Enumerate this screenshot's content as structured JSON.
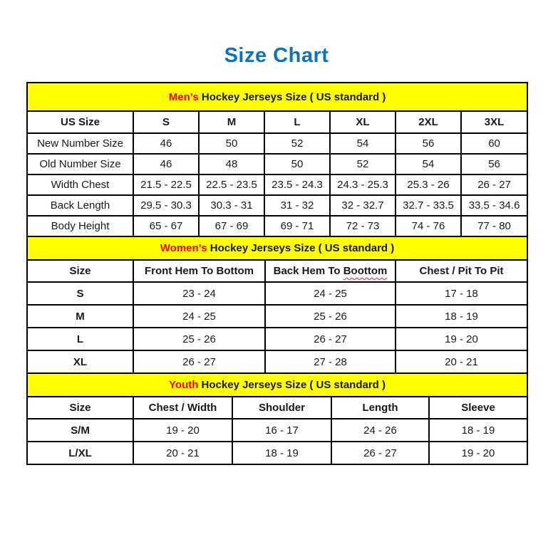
{
  "page": {
    "title": "Size Chart"
  },
  "colors": {
    "title_blue": "#1072BA",
    "section_header_bg": "#FFFF00",
    "accent_red": "#FF0000",
    "border_black": "#000000"
  },
  "tables": {
    "men": {
      "section_prefix": "Men’s",
      "section_title": " Hockey Jerseys Size ( US standard )",
      "columns": [
        "US Size",
        "S",
        "M",
        "L",
        "XL",
        "2XL",
        "3XL"
      ],
      "rows": [
        [
          "New Number Size",
          "46",
          "50",
          "52",
          "54",
          "56",
          "60"
        ],
        [
          "Old Number Size",
          "46",
          "48",
          "50",
          "52",
          "54",
          "56"
        ],
        [
          "Width Chest",
          "21.5 - 22.5",
          "22.5 - 23.5",
          "23.5 - 24.3",
          "24.3 - 25.3",
          "25.3 - 26",
          "26 - 27"
        ],
        [
          "Back Length",
          "29.5 - 30.3",
          "30.3 - 31",
          "31 - 32",
          "32 - 32.7",
          "32.7 - 33.5",
          "33.5 - 34.6"
        ],
        [
          "Body Height",
          "65 - 67",
          "67 - 69",
          "69 - 71",
          "72 - 73",
          "74 - 76",
          "77 - 80"
        ]
      ]
    },
    "women": {
      "section_prefix": "Women’s",
      "section_title": " Hockey Jerseys Size ( US standard )",
      "columns": [
        "Size",
        "Front Hem To Bottom",
        "Back Hem To Boottom",
        "Chest / Pit To Pit"
      ],
      "spellcheck": {
        "column_index": 2,
        "word": "Boottom"
      },
      "rows": [
        [
          "S",
          "23 - 24",
          "24 - 25",
          "17 - 18"
        ],
        [
          "M",
          "24 - 25",
          "25 - 26",
          "18 - 19"
        ],
        [
          "L",
          "25 - 26",
          "26 - 27",
          "19 - 20"
        ],
        [
          "XL",
          "26 - 27",
          "27 - 28",
          "20 - 21"
        ]
      ]
    },
    "youth": {
      "section_prefix": "Youth",
      "section_title": " Hockey Jerseys Size ( US standard )",
      "columns": [
        "Size",
        "Chest / Width",
        "Shoulder",
        "Length",
        "Sleeve"
      ],
      "rows": [
        [
          "S/M",
          "19 - 20",
          "16 - 17",
          "24 - 26",
          "18 - 19"
        ],
        [
          "L/XL",
          "20 - 21",
          "18 - 19",
          "26 - 27",
          "19 - 20"
        ]
      ]
    }
  }
}
